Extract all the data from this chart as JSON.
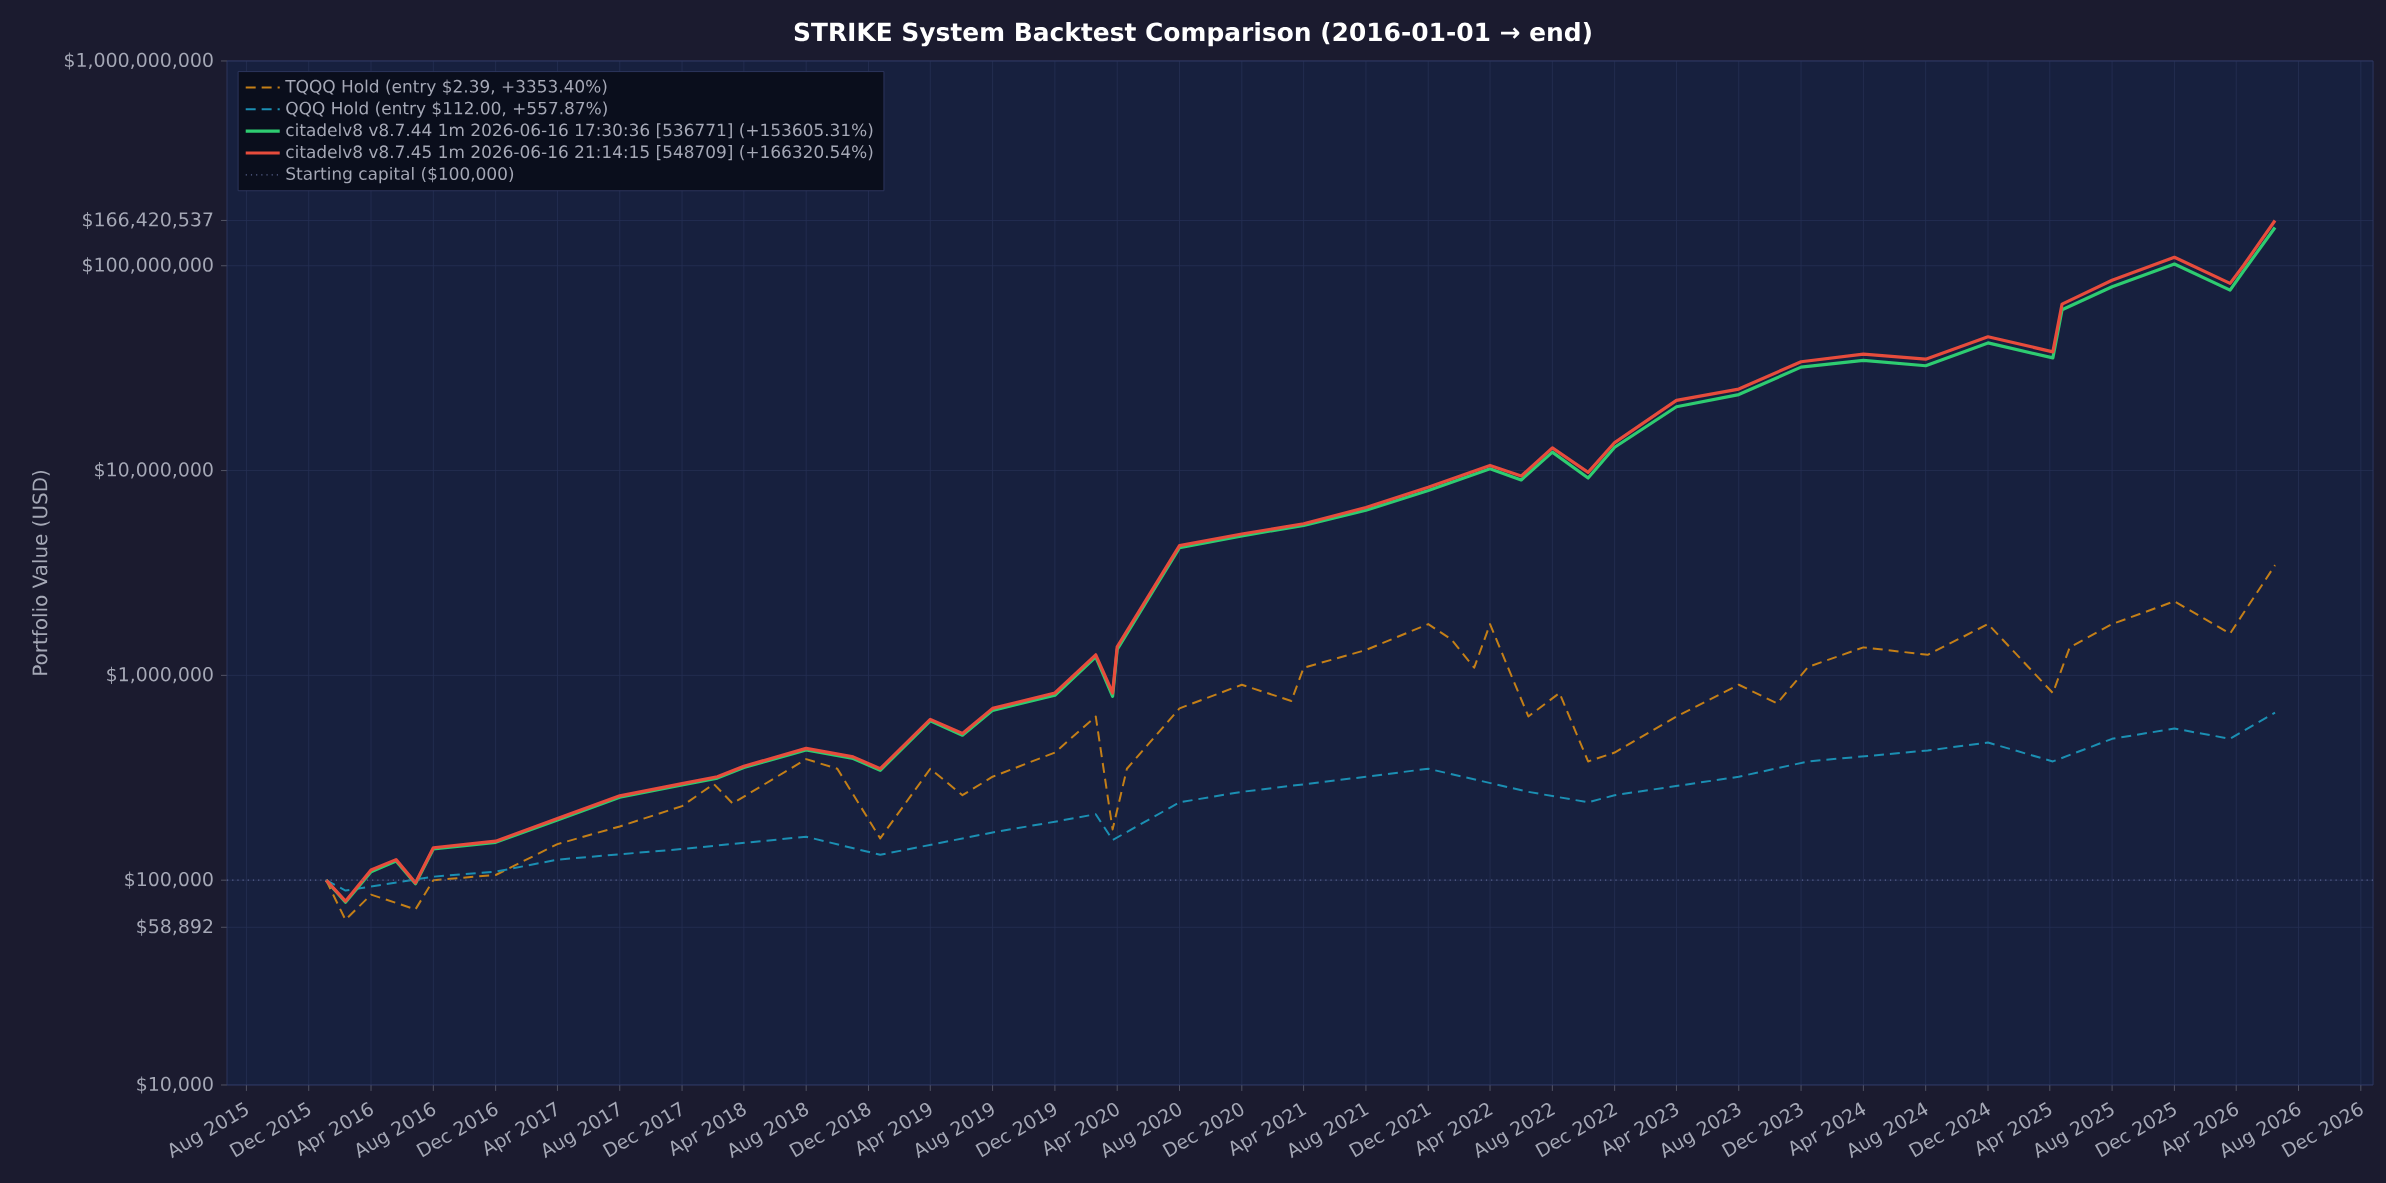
{
  "chart_data": {
    "type": "line",
    "title": "STRIKE System Backtest Comparison  (2016-01-01 → end)",
    "ylabel": "Portfolio Value (USD)",
    "xlim": [
      "2015-06-24",
      "2026-12-25"
    ],
    "xticks": [
      {
        "value": "2015-08-01",
        "label": "Aug 2015"
      },
      {
        "value": "2015-12-01",
        "label": "Dec 2015"
      },
      {
        "value": "2016-04-01",
        "label": "Apr 2016"
      },
      {
        "value": "2016-08-01",
        "label": "Aug 2016"
      },
      {
        "value": "2016-12-01",
        "label": "Dec 2016"
      },
      {
        "value": "2017-04-01",
        "label": "Apr 2017"
      },
      {
        "value": "2017-08-01",
        "label": "Aug 2017"
      },
      {
        "value": "2017-12-01",
        "label": "Dec 2017"
      },
      {
        "value": "2018-04-01",
        "label": "Apr 2018"
      },
      {
        "value": "2018-08-01",
        "label": "Aug 2018"
      },
      {
        "value": "2018-12-01",
        "label": "Dec 2018"
      },
      {
        "value": "2019-04-01",
        "label": "Apr 2019"
      },
      {
        "value": "2019-08-01",
        "label": "Aug 2019"
      },
      {
        "value": "2019-12-01",
        "label": "Dec 2019"
      },
      {
        "value": "2020-04-01",
        "label": "Apr 2020"
      },
      {
        "value": "2020-08-01",
        "label": "Aug 2020"
      },
      {
        "value": "2020-12-01",
        "label": "Dec 2020"
      },
      {
        "value": "2021-04-01",
        "label": "Apr 2021"
      },
      {
        "value": "2021-08-01",
        "label": "Aug 2021"
      },
      {
        "value": "2021-12-01",
        "label": "Dec 2021"
      },
      {
        "value": "2022-04-01",
        "label": "Apr 2022"
      },
      {
        "value": "2022-08-01",
        "label": "Aug 2022"
      },
      {
        "value": "2022-12-01",
        "label": "Dec 2022"
      },
      {
        "value": "2023-04-01",
        "label": "Apr 2023"
      },
      {
        "value": "2023-08-01",
        "label": "Aug 2023"
      },
      {
        "value": "2023-12-01",
        "label": "Dec 2023"
      },
      {
        "value": "2024-04-01",
        "label": "Apr 2024"
      },
      {
        "value": "2024-08-01",
        "label": "Aug 2024"
      },
      {
        "value": "2024-12-01",
        "label": "Dec 2024"
      },
      {
        "value": "2025-04-01",
        "label": "Apr 2025"
      },
      {
        "value": "2025-08-01",
        "label": "Aug 2025"
      },
      {
        "value": "2025-12-01",
        "label": "Dec 2025"
      },
      {
        "value": "2026-04-01",
        "label": "Apr 2026"
      },
      {
        "value": "2026-08-01",
        "label": "Aug 2026"
      },
      {
        "value": "2026-12-01",
        "label": "Dec 2026"
      }
    ],
    "ylim": [
      10000,
      1000000000
    ],
    "log": "y",
    "yticks": [
      {
        "value": 10000,
        "label": "$10,000"
      },
      {
        "value": 58892,
        "label": "$58,892"
      },
      {
        "value": 100000,
        "label": "$100,000"
      },
      {
        "value": 1000000,
        "label": "$1,000,000"
      },
      {
        "value": 10000000,
        "label": "$10,000,000"
      },
      {
        "value": 100000000,
        "label": "$100,000,000"
      },
      {
        "value": 166420537,
        "label": "$166,420,537"
      },
      {
        "value": 1000000000,
        "label": "$1,000,000,000"
      }
    ],
    "grid": true,
    "legend": "top left",
    "ref_lines": [
      {
        "axis": "y",
        "value": 100000,
        "label": "Starting capital ($100,000)",
        "color": "#5a6490",
        "line_style": "dotted"
      }
    ],
    "series": [
      {
        "name": "TQQQ Hold  (entry $2.39,  +3353.40%)",
        "color": "#c47f17",
        "line_style": "dashed",
        "x": [
          "2016-01-04",
          "2016-02-11",
          "2016-04-01",
          "2016-06-27",
          "2016-08-01",
          "2016-12-01",
          "2017-04-01",
          "2017-08-01",
          "2017-12-01",
          "2018-02-01",
          "2018-03-10",
          "2018-08-01",
          "2018-10-01",
          "2018-12-24",
          "2019-04-01",
          "2019-06-03",
          "2019-08-01",
          "2019-12-01",
          "2020-02-19",
          "2020-03-23",
          "2020-04-20",
          "2020-08-01",
          "2020-12-01",
          "2021-03-08",
          "2021-04-01",
          "2021-08-01",
          "2021-12-01",
          "2022-01-15",
          "2022-03-01",
          "2022-04-01",
          "2022-06-15",
          "2022-08-15",
          "2022-10-10",
          "2022-12-01",
          "2023-04-01",
          "2023-08-01",
          "2023-10-15",
          "2023-12-15",
          "2024-04-01",
          "2024-08-05",
          "2024-12-01",
          "2025-04-07",
          "2025-05-10",
          "2025-08-01",
          "2025-12-01",
          "2026-03-20",
          "2026-06-16"
        ],
        "values": [
          100000,
          64000,
          85000,
          72000,
          100000,
          106000,
          150000,
          183000,
          230000,
          295000,
          237000,
          390000,
          350000,
          160000,
          350000,
          260000,
          320000,
          420000,
          630000,
          177000,
          350000,
          690000,
          900000,
          750000,
          1090000,
          1330000,
          1780000,
          1500000,
          1090000,
          1780000,
          630000,
          820000,
          380000,
          420000,
          630000,
          900000,
          730000,
          1100000,
          1370000,
          1260000,
          1780000,
          820000,
          1370000,
          1780000,
          2300000,
          1600000,
          3453400
        ]
      },
      {
        "name": "QQQ Hold  (entry $112.00,  +557.87%)",
        "color": "#1b8fb3",
        "line_style": "dashed",
        "x": [
          "2016-01-04",
          "2016-02-11",
          "2016-08-01",
          "2016-12-01",
          "2017-04-01",
          "2017-12-01",
          "2018-08-01",
          "2018-12-24",
          "2019-08-01",
          "2019-12-01",
          "2020-02-19",
          "2020-03-23",
          "2020-08-01",
          "2020-12-01",
          "2021-08-01",
          "2021-12-01",
          "2022-06-15",
          "2022-10-10",
          "2022-12-01",
          "2023-08-01",
          "2023-12-15",
          "2024-08-05",
          "2024-12-01",
          "2025-04-07",
          "2025-08-01",
          "2025-12-01",
          "2026-03-20",
          "2026-06-16"
        ],
        "values": [
          100000,
          89000,
          104000,
          110000,
          126000,
          142000,
          163000,
          133000,
          171000,
          193000,
          210000,
          157000,
          240000,
          270000,
          320000,
          350000,
          270000,
          240000,
          260000,
          320000,
          380000,
          430000,
          470000,
          380000,
          490000,
          550000,
          490000,
          657870
        ]
      },
      {
        "name": "citadelv8 v8.7.44  1m  2026-06-16 17:30:36 [536771]  (+153605.31%)",
        "color": "#2ecc71",
        "line_style": "solid",
        "x": [
          "2016-01-04",
          "2016-02-11",
          "2016-04-01",
          "2016-05-20",
          "2016-06-27",
          "2016-08-01",
          "2016-12-01",
          "2017-04-01",
          "2017-08-01",
          "2017-12-01",
          "2018-02-08",
          "2018-04-01",
          "2018-08-01",
          "2018-11-01",
          "2018-12-24",
          "2019-04-01",
          "2019-06-03",
          "2019-08-01",
          "2019-12-01",
          "2020-02-19",
          "2020-03-23",
          "2020-04-01",
          "2020-08-01",
          "2020-12-01",
          "2021-04-01",
          "2021-08-01",
          "2021-12-01",
          "2022-04-01",
          "2022-06-01",
          "2022-08-01",
          "2022-10-10",
          "2022-12-01",
          "2023-04-01",
          "2023-08-01",
          "2023-12-01",
          "2024-04-01",
          "2024-08-01",
          "2024-12-01",
          "2025-04-07",
          "2025-04-25",
          "2025-08-01",
          "2025-12-01",
          "2026-03-20",
          "2026-04-15",
          "2026-06-16"
        ],
        "values": [
          100000,
          78000,
          110000,
          124000,
          96000,
          142000,
          153000,
          197000,
          254000,
          292000,
          315000,
          355000,
          432000,
          393000,
          344000,
          600000,
          510000,
          675000,
          800000,
          1230000,
          790000,
          1340000,
          4200000,
          4800000,
          5400000,
          6400000,
          8000000,
          10200000,
          9000000,
          12300000,
          9200000,
          13000000,
          20500000,
          23500000,
          32000000,
          34500000,
          32500000,
          42000000,
          35500000,
          61000000,
          79000000,
          102000000,
          76000000,
          94000000,
          153705310
        ]
      },
      {
        "name": "citadelv8 v8.7.45  1m  2026-06-16 21:14:15 [548709]  (+166320.54%)",
        "color": "#e74c3c",
        "line_style": "solid",
        "x": [
          "2016-01-04",
          "2016-02-11",
          "2016-04-01",
          "2016-05-20",
          "2016-06-27",
          "2016-08-01",
          "2016-12-01",
          "2017-04-01",
          "2017-08-01",
          "2017-12-01",
          "2018-02-08",
          "2018-04-01",
          "2018-08-01",
          "2018-11-01",
          "2018-12-24",
          "2019-04-01",
          "2019-06-03",
          "2019-08-01",
          "2019-12-01",
          "2020-02-19",
          "2020-03-23",
          "2020-04-01",
          "2020-08-01",
          "2020-12-01",
          "2021-04-01",
          "2021-08-01",
          "2021-12-01",
          "2022-04-01",
          "2022-06-01",
          "2022-08-01",
          "2022-10-10",
          "2022-12-01",
          "2023-04-01",
          "2023-08-01",
          "2023-12-01",
          "2024-04-01",
          "2024-08-01",
          "2024-12-01",
          "2025-04-07",
          "2025-04-25",
          "2025-08-01",
          "2025-12-01",
          "2026-03-20",
          "2026-04-15",
          "2026-06-16"
        ],
        "values": [
          100000,
          79000,
          112000,
          126000,
          97000,
          144000,
          155000,
          200000,
          258000,
          296000,
          320000,
          360000,
          440000,
          400000,
          350000,
          610000,
          520000,
          690000,
          820000,
          1260000,
          820000,
          1380000,
          4300000,
          4900000,
          5500000,
          6600000,
          8300000,
          10600000,
          9400000,
          12900000,
          9800000,
          13700000,
          22000000,
          25000000,
          34000000,
          37000000,
          35000000,
          45000000,
          38000000,
          65000000,
          85000000,
          110000000,
          82000000,
          100000000,
          166420537
        ]
      }
    ]
  }
}
